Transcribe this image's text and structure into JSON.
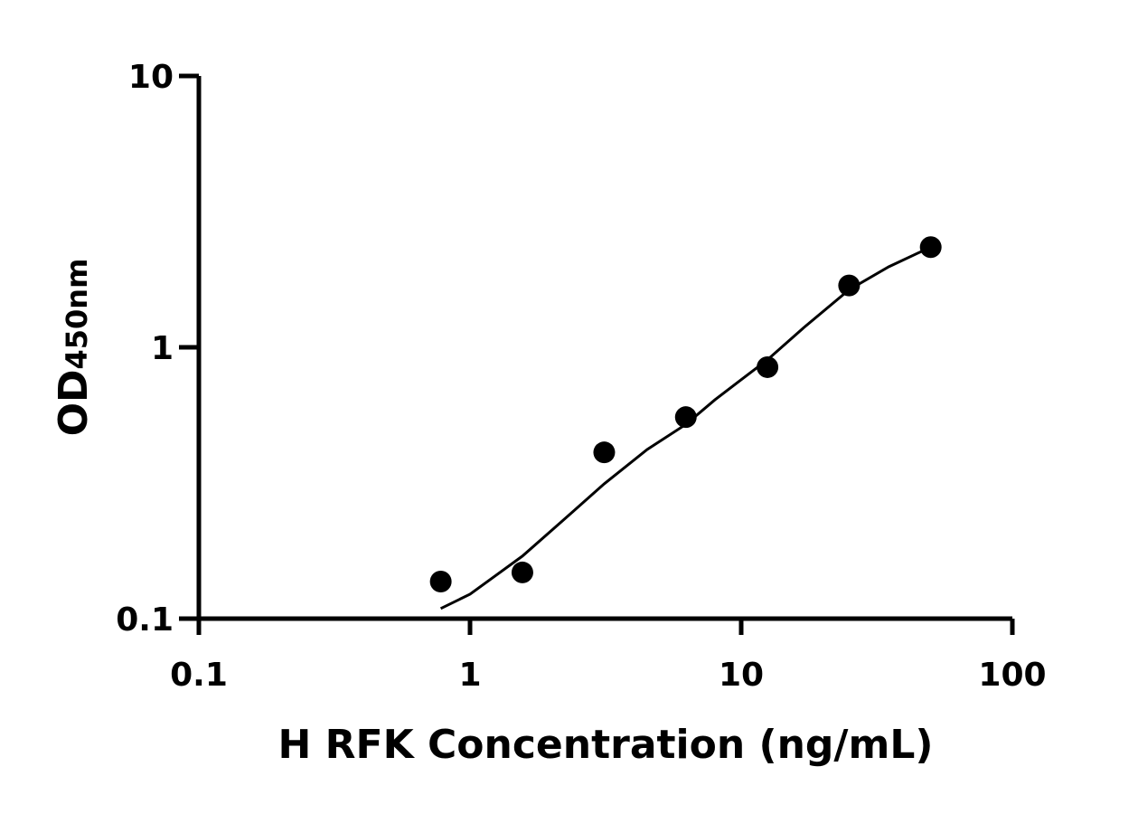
{
  "chart_data": {
    "type": "scatter",
    "title": "",
    "xlabel": "H RFK Concentration (ng/mL)",
    "ylabel_main": "OD",
    "ylabel_sub": "450nm",
    "xscale": "log",
    "yscale": "log",
    "xlim": [
      0.1,
      100
    ],
    "ylim": [
      0.1,
      10
    ],
    "xticks": [
      0.1,
      1,
      10,
      100
    ],
    "xtick_labels": [
      "0.1",
      "1",
      "10",
      "100"
    ],
    "yticks": [
      0.1,
      1,
      10
    ],
    "ytick_labels": [
      "0.1",
      "1",
      "10"
    ],
    "grid": false,
    "legend": "none",
    "marker_color": "#000000",
    "points": {
      "x": [
        0.78,
        1.56,
        3.125,
        6.25,
        12.5,
        25,
        50
      ],
      "y": [
        0.137,
        0.148,
        0.41,
        0.553,
        0.845,
        1.69,
        2.34
      ]
    },
    "fit_curve": {
      "x": [
        0.78,
        1,
        1.56,
        2.2,
        3.125,
        4.5,
        6.25,
        8,
        10,
        12.5,
        17,
        25,
        35,
        50
      ],
      "y": [
        0.109,
        0.123,
        0.17,
        0.23,
        0.314,
        0.42,
        0.52,
        0.64,
        0.76,
        0.9,
        1.18,
        1.63,
        1.98,
        2.34
      ]
    }
  }
}
